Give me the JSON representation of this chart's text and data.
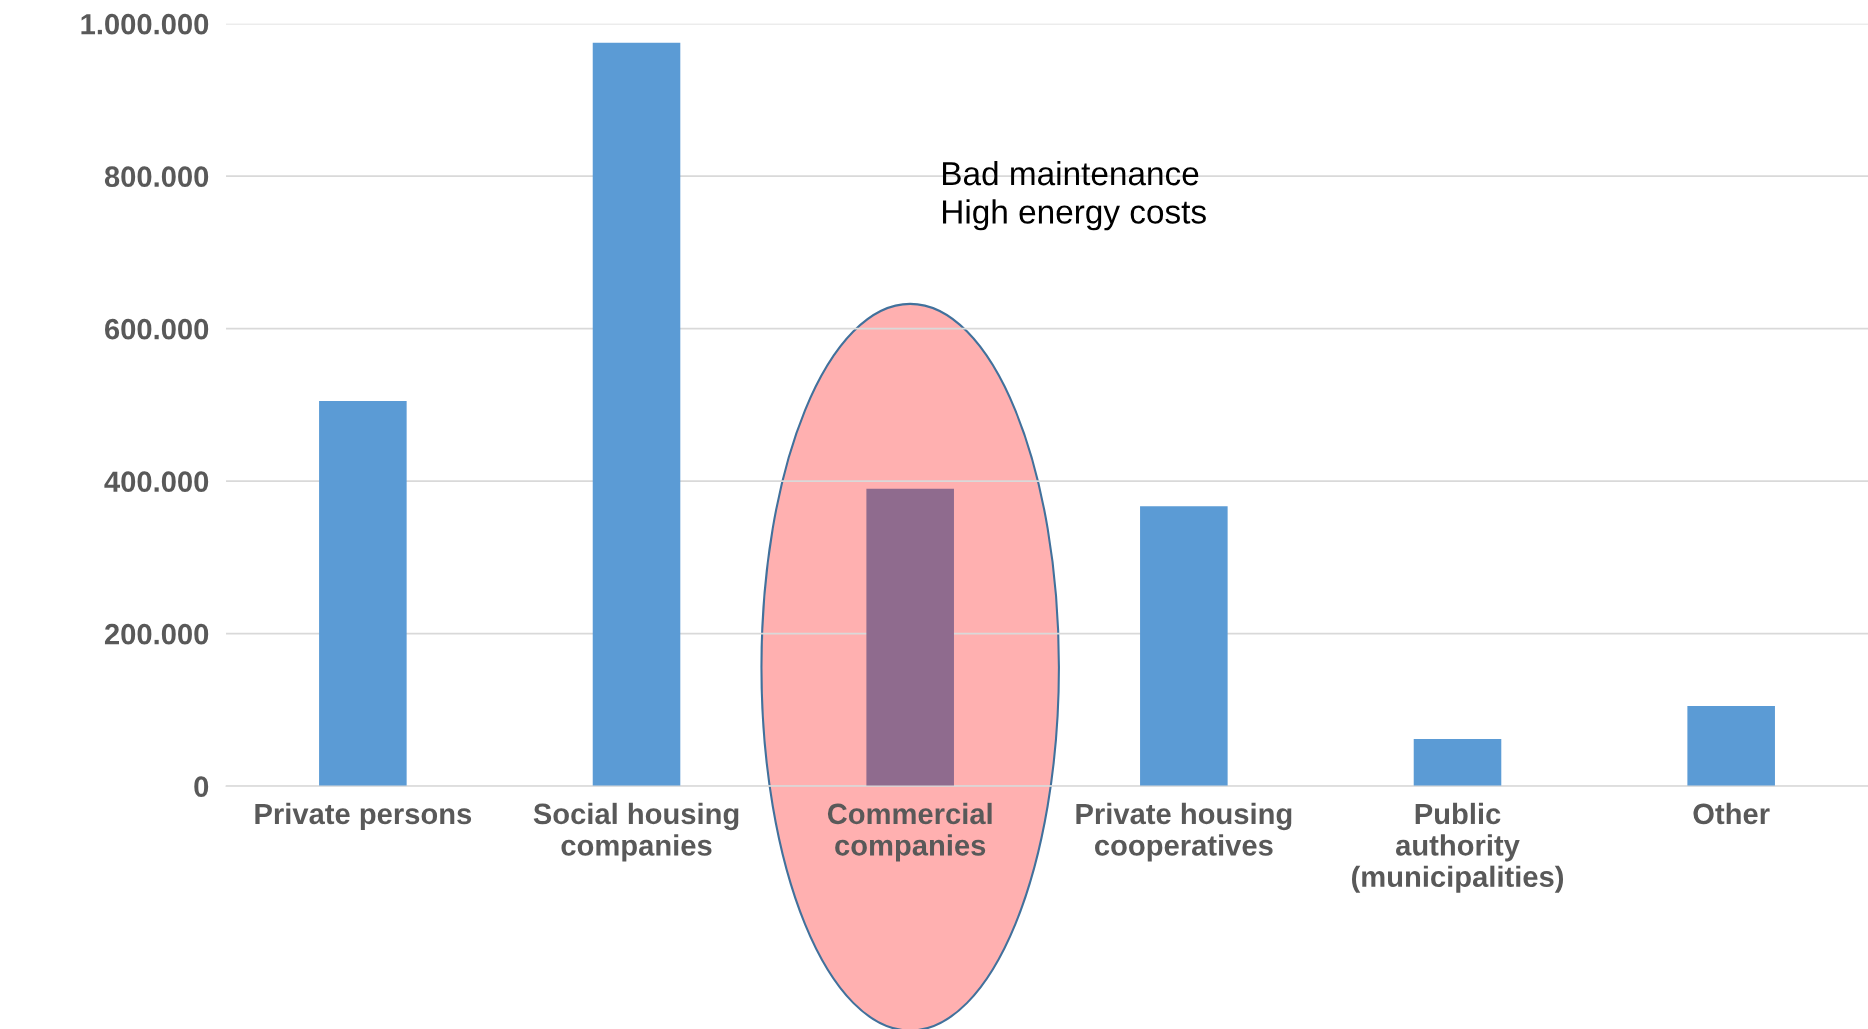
{
  "chart_data": {
    "type": "bar",
    "categories": [
      "Private persons",
      "Social housing\ncompanies",
      "Commercial\ncompanies",
      "Private housing\ncooperatives",
      "Public\nauthority\n(municipalities)",
      "Other"
    ],
    "values": [
      505000,
      975000,
      390000,
      367000,
      62000,
      105000
    ],
    "colors": [
      "#5b9bd5",
      "#5b9bd5",
      "#8f6b8e",
      "#5b9bd5",
      "#5b9bd5",
      "#5b9bd5"
    ],
    "ylim": [
      0,
      1000000
    ],
    "yticks": [
      {
        "value": 0,
        "label": "0"
      },
      {
        "value": 200000,
        "label": "200.000"
      },
      {
        "value": 400000,
        "label": "400.000"
      },
      {
        "value": 600000,
        "label": "600.000"
      },
      {
        "value": 800000,
        "label": "800.000"
      },
      {
        "value": 1000000,
        "label": "1.000.000"
      }
    ],
    "grid": "y",
    "annotations": [
      "Bad maintenance\nHigh energy costs"
    ]
  }
}
